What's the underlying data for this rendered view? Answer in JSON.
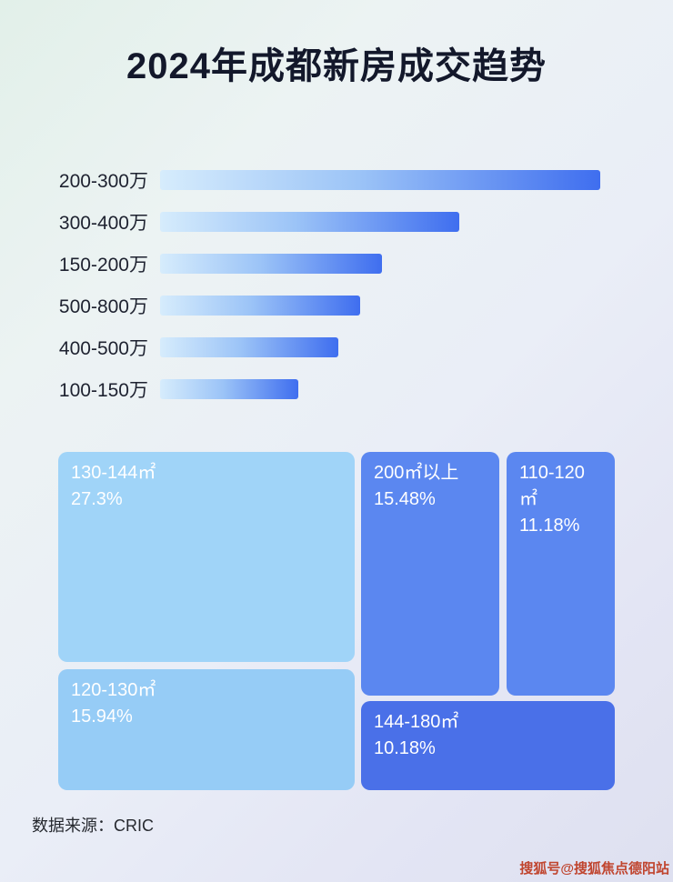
{
  "title": "2024年成都新房成交趋势",
  "source": "数据来源：CRIC",
  "watermark": "搜狐号@搜狐焦点德阳站",
  "colors": {
    "bar_gradient_start": "#d6ecfc",
    "bar_gradient_end": "#3f6eef",
    "treemap_light_blue": "#a0d4f8",
    "treemap_medium_blue": "#5b87f0",
    "treemap_deep_blue": "#4a70e8",
    "title_text": "#13182b",
    "box_text": "#ffffff",
    "watermark_red": "#c0452f"
  },
  "chart_data": [
    {
      "type": "bar",
      "orientation": "horizontal",
      "title": "2024年成都新房成交趋势",
      "categories": [
        "200-300万",
        "300-400万",
        "150-200万",
        "500-800万",
        "400-500万",
        "100-150万"
      ],
      "values": [
        100,
        68,
        50.5,
        45.5,
        40.5,
        31.5
      ],
      "value_note": "relative bar lengths (percent of longest bar); no numeric axis labels shown",
      "xlabel": "",
      "ylabel": "",
      "grid": false,
      "legend": "none"
    },
    {
      "type": "treemap",
      "items": [
        {
          "label": "130-144㎡",
          "value": 27.3,
          "value_label": "27.3%"
        },
        {
          "label": "200㎡以上",
          "value": 15.48,
          "value_label": "15.48%"
        },
        {
          "label": "110-120㎡",
          "value": 11.18,
          "value_label": "11.18%"
        },
        {
          "label": "120-130㎡",
          "value": 15.94,
          "value_label": "15.94%"
        },
        {
          "label": "144-180㎡",
          "value": 10.18,
          "value_label": "10.18%"
        }
      ]
    }
  ]
}
